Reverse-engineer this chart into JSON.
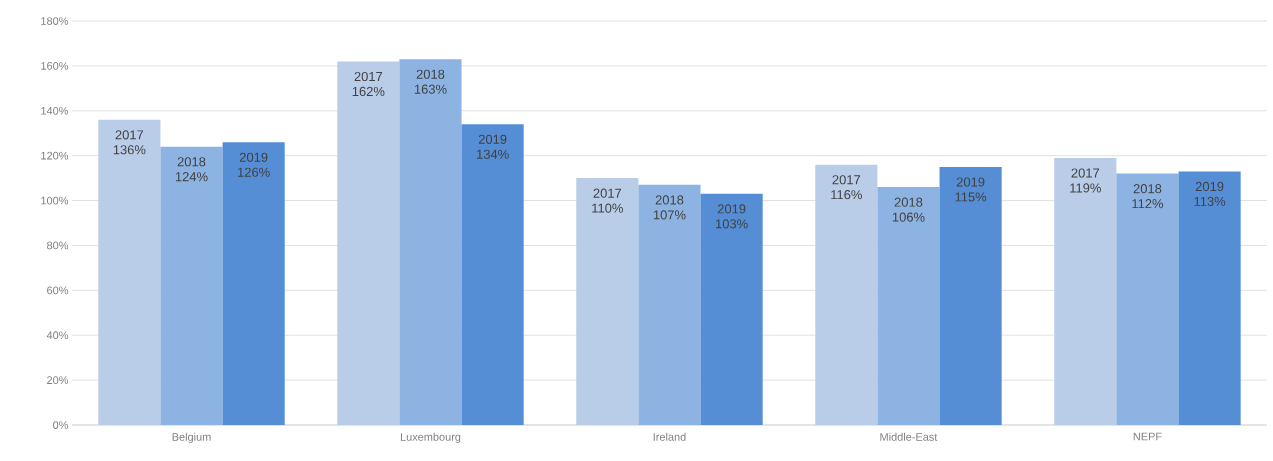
{
  "chart_data": {
    "type": "bar",
    "categories": [
      "Belgium",
      "Luxembourg",
      "Ireland",
      "Middle-East",
      "NEPF"
    ],
    "series": [
      {
        "name": "2017",
        "color": "#b9cde8",
        "values": [
          136,
          162,
          110,
          116,
          119
        ],
        "value_labels": [
          "136%",
          "162%",
          "110%",
          "116%",
          "119%"
        ]
      },
      {
        "name": "2018",
        "color": "#8db3e2",
        "values": [
          124,
          163,
          107,
          106,
          112
        ],
        "value_labels": [
          "124%",
          "163%",
          "107%",
          "106%",
          "112%"
        ]
      },
      {
        "name": "2019",
        "color": "#558ed5",
        "values": [
          126,
          134,
          103,
          115,
          113
        ],
        "value_labels": [
          "126%",
          "134%",
          "103%",
          "115%",
          "113%"
        ]
      }
    ],
    "ylim": [
      0,
      180
    ],
    "yticks": [
      {
        "value": 0,
        "label": "0%"
      },
      {
        "value": 20,
        "label": "20%"
      },
      {
        "value": 40,
        "label": "40%"
      },
      {
        "value": 60,
        "label": "60%"
      },
      {
        "value": 80,
        "label": "80%"
      },
      {
        "value": 100,
        "label": "100%"
      },
      {
        "value": 120,
        "label": "120%"
      },
      {
        "value": 140,
        "label": "140%"
      },
      {
        "value": 160,
        "label": "160%"
      },
      {
        "value": 180,
        "label": "180%"
      }
    ],
    "grid": "y",
    "legend": false
  }
}
